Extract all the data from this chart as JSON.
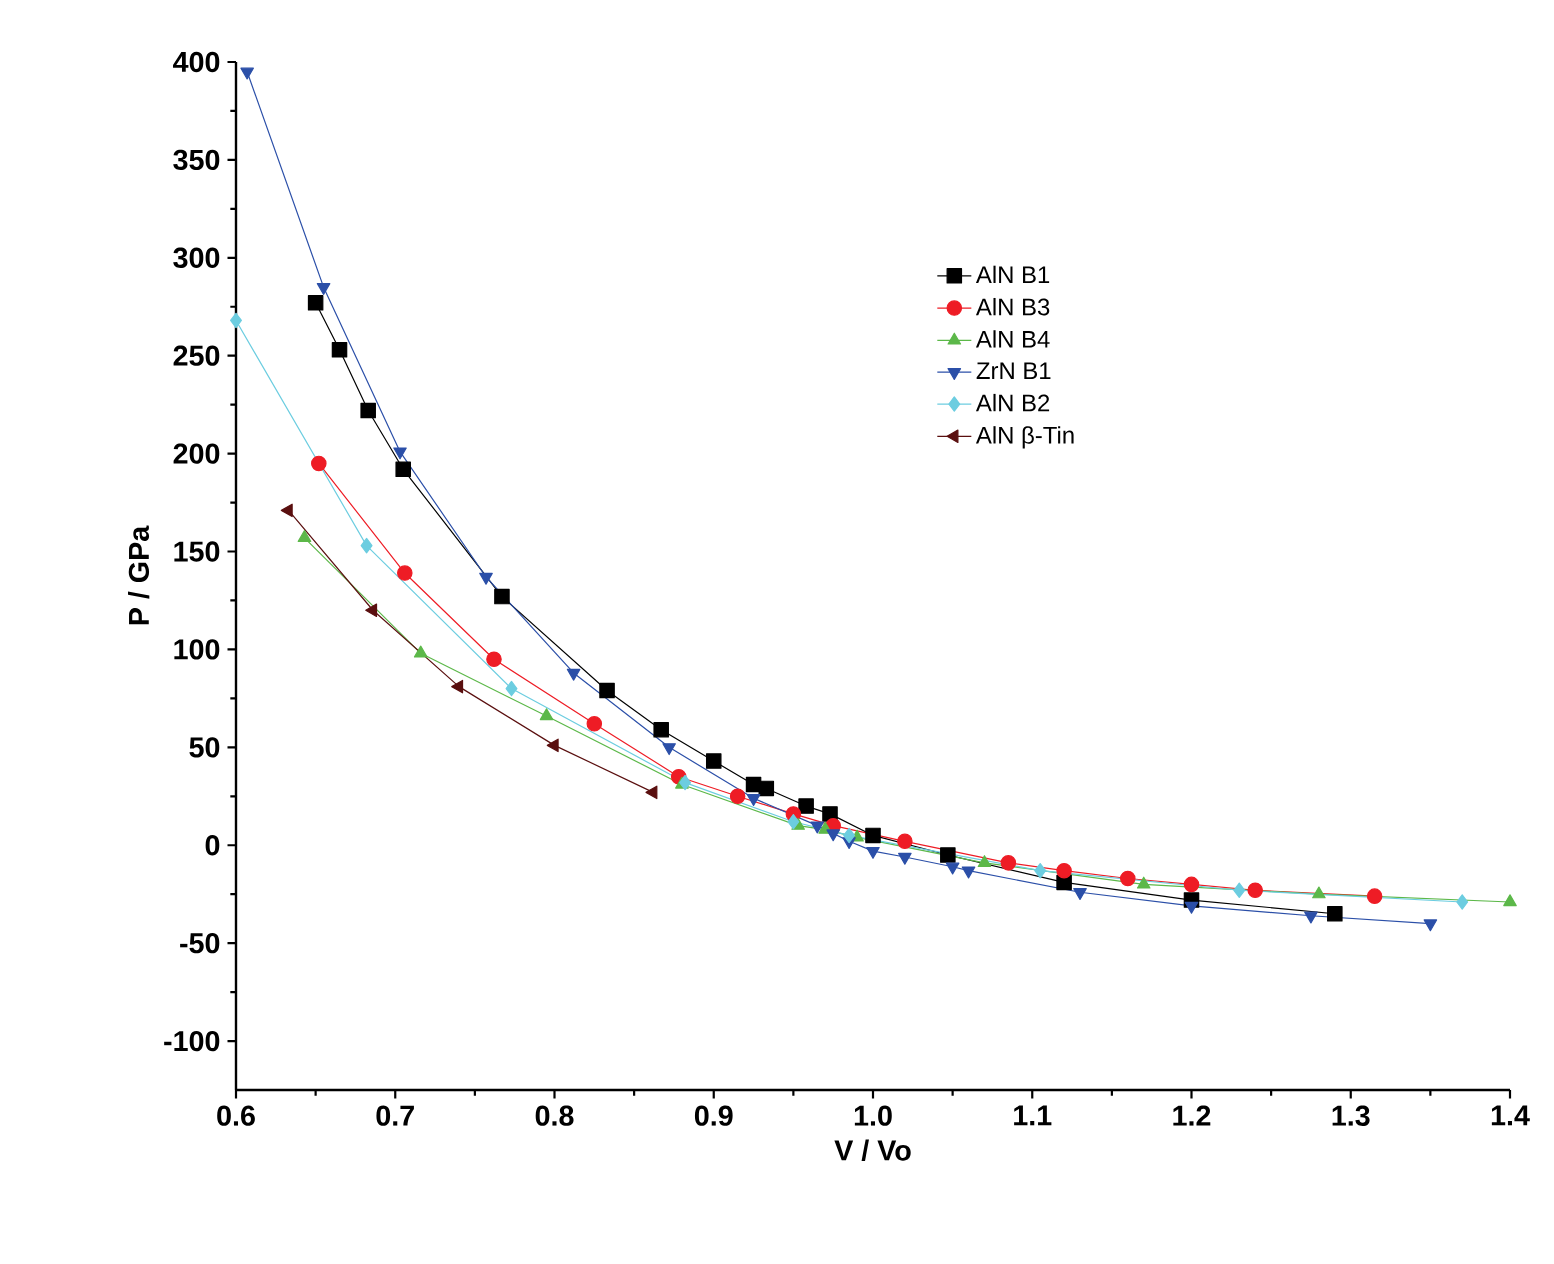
{
  "chart_data": {
    "type": "line",
    "xlabel": "V / Vo",
    "ylabel": "P / GPa",
    "xlim": [
      0.6,
      1.4
    ],
    "ylim": [
      -125,
      400
    ],
    "xticks": [
      0.6,
      0.7,
      0.8,
      0.9,
      {
        "value": 1.0,
        "label": "1.0"
      },
      1.1,
      1.2,
      1.3,
      1.4
    ],
    "yticks": [
      -100,
      -50,
      0,
      50,
      100,
      150,
      200,
      250,
      300,
      350,
      400
    ],
    "legend": "top right",
    "grid": false,
    "line_style": "solid",
    "series": [
      {
        "name": "AlN B1",
        "color": "#000000",
        "marker": "square",
        "x": [
          0.65,
          0.665,
          0.683,
          0.705,
          0.767,
          0.833,
          0.867,
          0.9,
          0.925,
          0.933,
          0.958,
          0.973,
          1.0,
          1.047,
          1.12,
          1.2,
          1.29
        ],
        "values": [
          277,
          253,
          222,
          192,
          127,
          79,
          59,
          43,
          31,
          29,
          20,
          16,
          5,
          -5,
          -19,
          -28,
          -35
        ]
      },
      {
        "name": "AlN B3",
        "color": "#ee1c25",
        "marker": "circle",
        "x": [
          0.652,
          0.706,
          0.762,
          0.825,
          0.878,
          0.915,
          0.95,
          0.975,
          1.02,
          1.085,
          1.12,
          1.16,
          1.2,
          1.24,
          1.315
        ],
        "values": [
          195,
          139,
          95,
          62,
          35,
          25,
          16,
          10,
          2,
          -9,
          -13,
          -17,
          -20,
          -23,
          -26
        ]
      },
      {
        "name": "AlN B4",
        "color": "#5cb849",
        "marker": "triangle",
        "x": [
          0.643,
          0.716,
          0.795,
          0.88,
          0.953,
          0.97,
          0.99,
          1.07,
          1.17,
          1.28,
          1.4
        ],
        "values": [
          157,
          98,
          66,
          31,
          10,
          8,
          4,
          -9,
          -20,
          -25,
          -29
        ]
      },
      {
        "name": "ZrN B1",
        "color": "#2b4fa8",
        "marker": "triangle down",
        "x": [
          0.607,
          0.655,
          0.703,
          0.757,
          0.812,
          0.872,
          0.925,
          0.965,
          0.975,
          0.985,
          1.0,
          1.02,
          1.05,
          1.06,
          1.13,
          1.2,
          1.275,
          1.35
        ],
        "values": [
          395,
          285,
          201,
          137,
          88,
          50,
          24,
          10,
          6,
          2,
          -3,
          -6,
          -11,
          -13,
          -24,
          -31,
          -36,
          -40
        ]
      },
      {
        "name": "AlN B2",
        "color": "#6ccde0",
        "marker": "diamond",
        "x": [
          0.6,
          0.682,
          0.773,
          0.882,
          0.95,
          0.985,
          1.105,
          1.23,
          1.37
        ],
        "values": [
          268,
          153,
          80,
          32,
          12,
          5,
          -13,
          -23,
          -29
        ]
      },
      {
        "name": "AlN β-Tin",
        "color": "#5a0f0f",
        "marker": "triangle left",
        "x": [
          0.633,
          0.686,
          0.74,
          0.8,
          0.862
        ],
        "values": [
          171,
          120,
          81,
          51,
          27
        ]
      }
    ]
  }
}
